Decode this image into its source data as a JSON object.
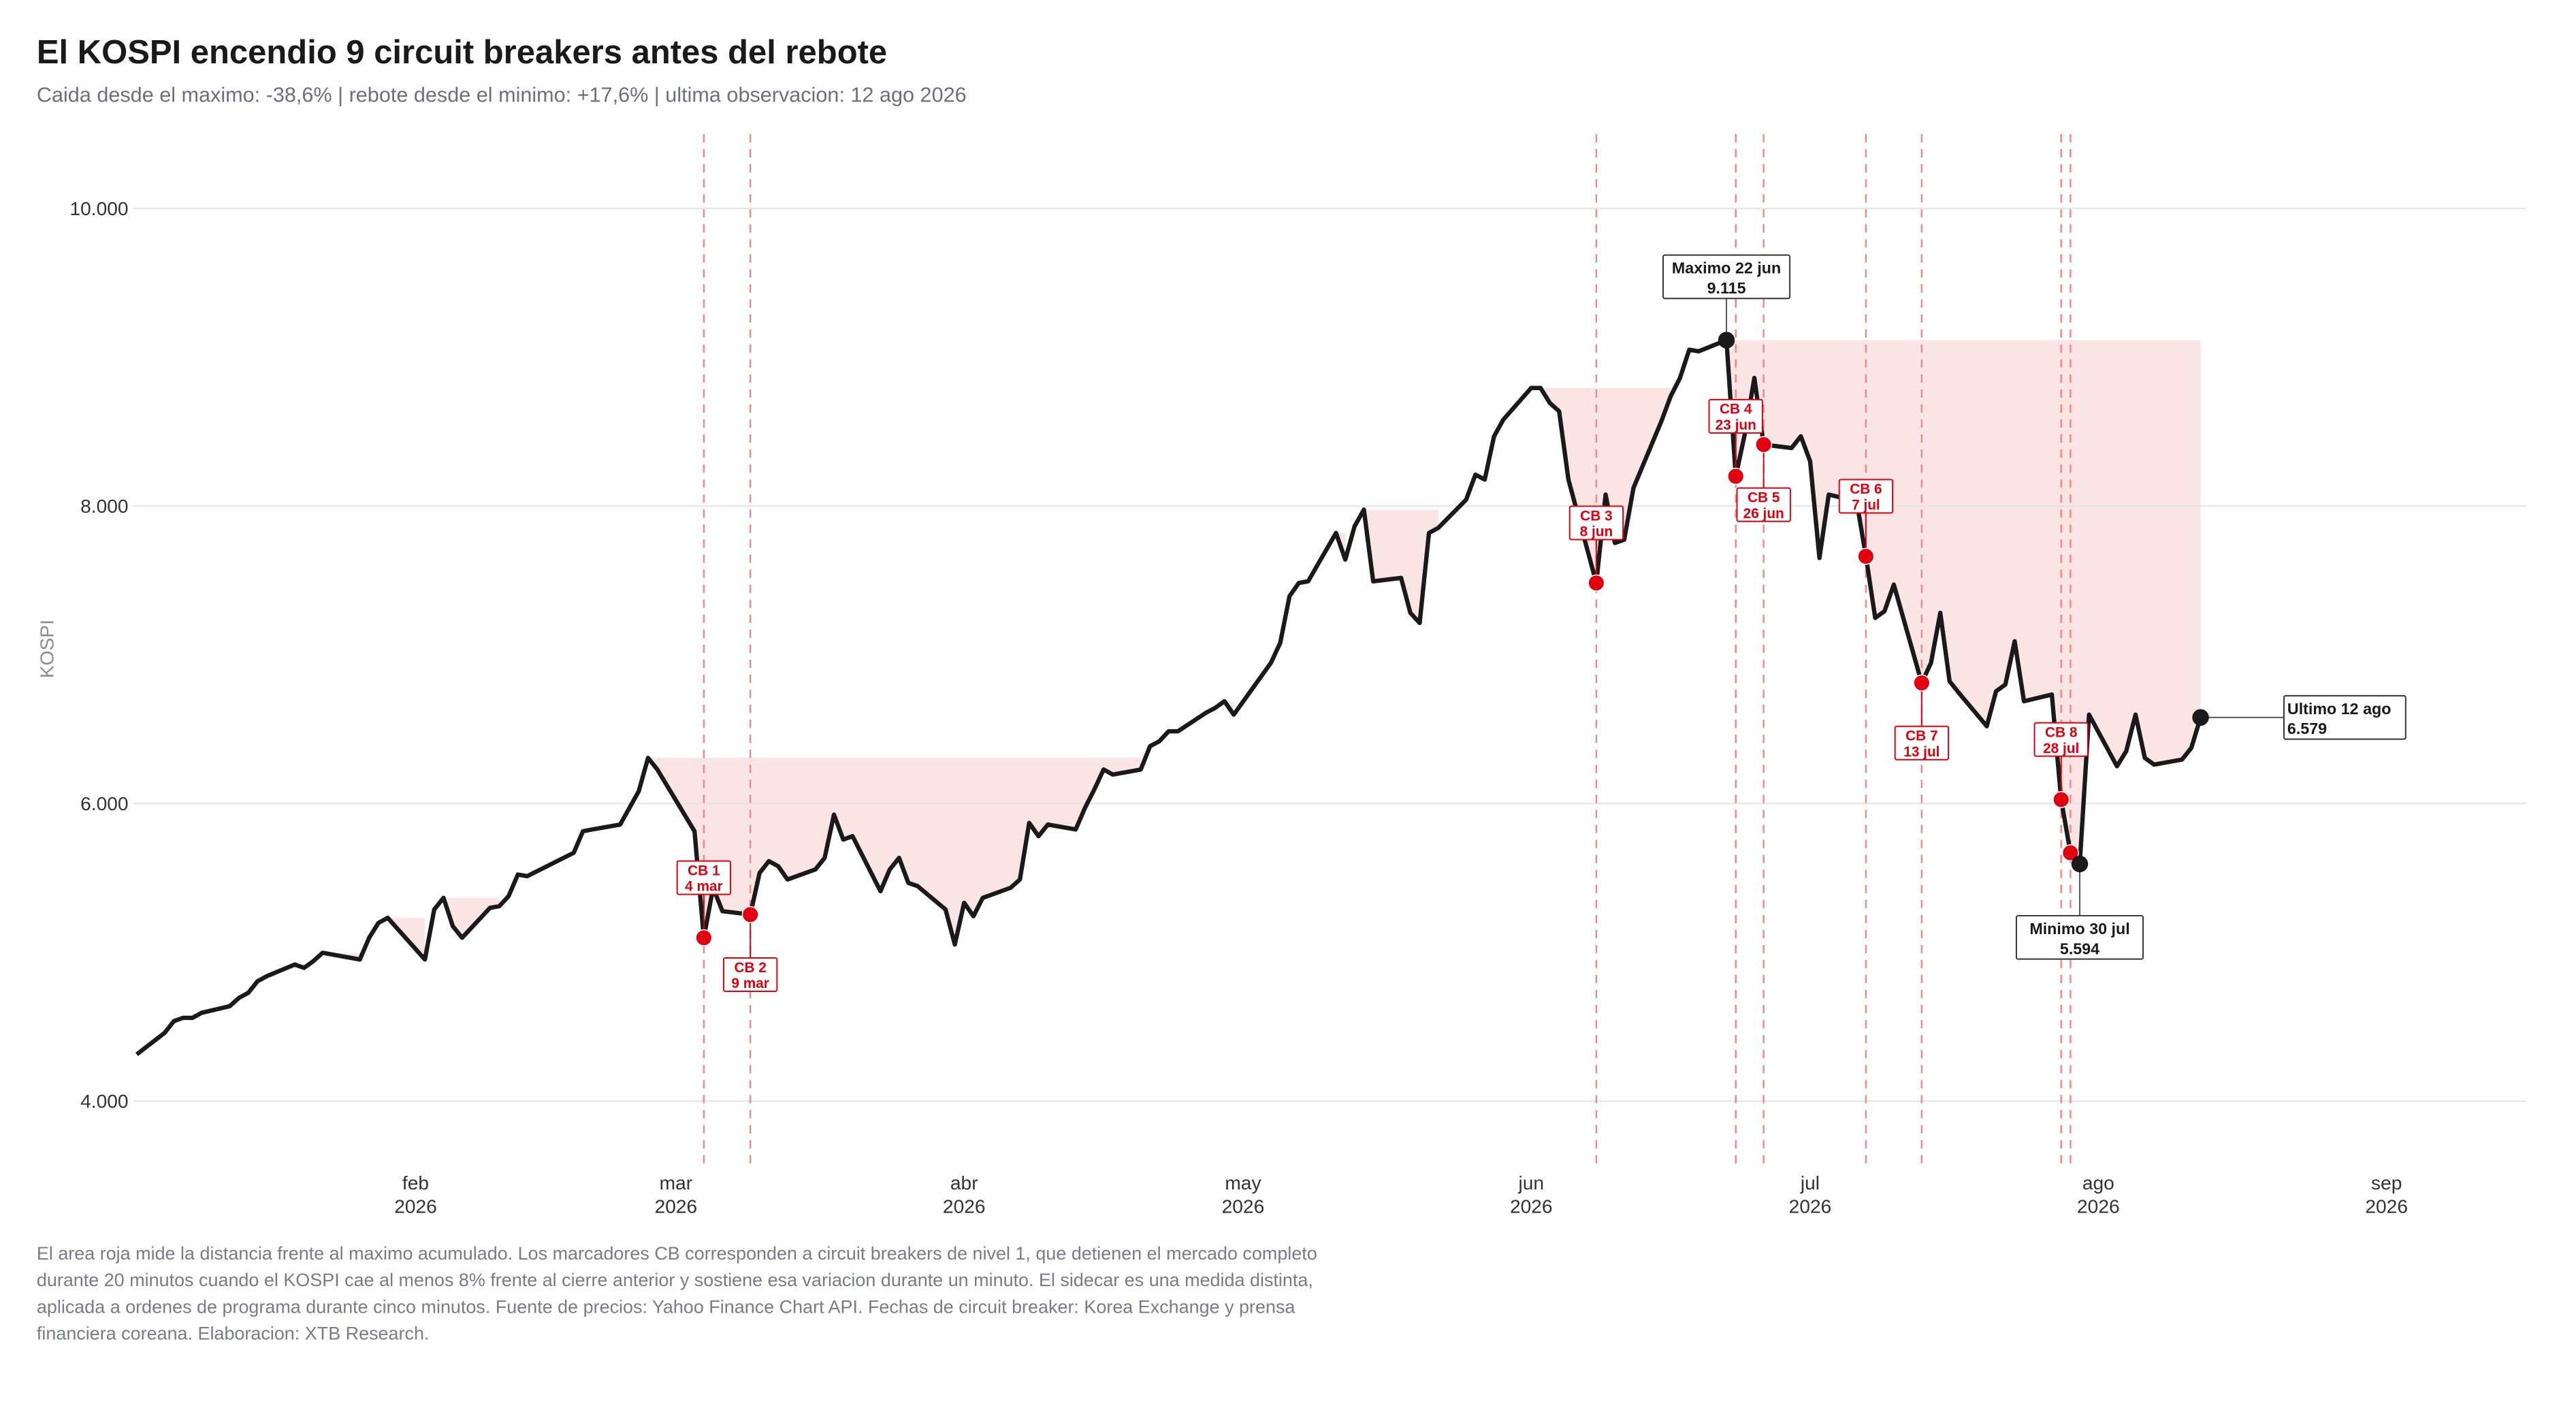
{
  "chart_data": {
    "type": "line",
    "title": "El KOSPI encendio 9 circuit breakers antes del rebote",
    "subtitle": "Caida desde el maximo: -38,6% | rebote desde el minimo: +17,6% | ultima observacion: 12 ago 2026",
    "y_label": "KOSPI",
    "note": "El area roja mide la distancia frente al maximo acumulado. Los marcadores CB corresponden a circuit breakers de nivel 1, que detienen el mercado completo durante 20 minutos cuando el KOSPI cae al menos 8% frente al cierre anterior y sostiene esa variacion durante un minuto. El sidecar es una medida distinta, aplicada a ordenes de programa durante cinco minutos. Fuente de precios: Yahoo Finance Chart API. Fechas de circuit breaker: Korea Exchange y prensa financiera coreana. Elaboracion: XTB Research.",
    "xlim": [
      "2026-01-02",
      "2026-09-16"
    ],
    "ylim": [
      3580,
      10500
    ],
    "xticks": [
      {
        "value": "2026-02-01",
        "label": "feb",
        "year": "2026"
      },
      {
        "value": "2026-03-01",
        "label": "mar",
        "year": "2026"
      },
      {
        "value": "2026-04-01",
        "label": "abr",
        "year": "2026"
      },
      {
        "value": "2026-05-01",
        "label": "may",
        "year": "2026"
      },
      {
        "value": "2026-06-01",
        "label": "jun",
        "year": "2026"
      },
      {
        "value": "2026-07-01",
        "label": "jul",
        "year": "2026"
      },
      {
        "value": "2026-08-01",
        "label": "ago",
        "year": "2026"
      },
      {
        "value": "2026-09-01",
        "label": "sep",
        "year": "2026"
      }
    ],
    "yticks": [
      {
        "value": 4000,
        "label": "4.000"
      },
      {
        "value": 6000,
        "label": "6.000"
      },
      {
        "value": 8000,
        "label": "8.000"
      },
      {
        "value": 10000,
        "label": "10.000"
      }
    ],
    "grid": true,
    "drawdown_color": "#fbe4e4",
    "series": [
      {
        "name": "KOSPI",
        "color": "#1a1a1a",
        "x": [
          "2026-01-02",
          "2026-01-05",
          "2026-01-06",
          "2026-01-07",
          "2026-01-08",
          "2026-01-09",
          "2026-01-12",
          "2026-01-13",
          "2026-01-14",
          "2026-01-15",
          "2026-01-16",
          "2026-01-19",
          "2026-01-20",
          "2026-01-21",
          "2026-01-22",
          "2026-01-26",
          "2026-01-27",
          "2026-01-28",
          "2026-01-29",
          "2026-02-02",
          "2026-02-03",
          "2026-02-04",
          "2026-02-05",
          "2026-02-06",
          "2026-02-09",
          "2026-02-10",
          "2026-02-11",
          "2026-02-12",
          "2026-02-13",
          "2026-02-18",
          "2026-02-19",
          "2026-02-20",
          "2026-02-23",
          "2026-02-24",
          "2026-02-25",
          "2026-02-26",
          "2026-02-27",
          "2026-03-03",
          "2026-03-04",
          "2026-03-05",
          "2026-03-06",
          "2026-03-09",
          "2026-03-10",
          "2026-03-11",
          "2026-03-12",
          "2026-03-13",
          "2026-03-16",
          "2026-03-17",
          "2026-03-18",
          "2026-03-19",
          "2026-03-20",
          "2026-03-23",
          "2026-03-24",
          "2026-03-25",
          "2026-03-26",
          "2026-03-27",
          "2026-03-30",
          "2026-03-31",
          "2026-04-01",
          "2026-04-02",
          "2026-04-03",
          "2026-04-06",
          "2026-04-07",
          "2026-04-08",
          "2026-04-09",
          "2026-04-10",
          "2026-04-13",
          "2026-04-14",
          "2026-04-15",
          "2026-04-16",
          "2026-04-17",
          "2026-04-20",
          "2026-04-21",
          "2026-04-22",
          "2026-04-23",
          "2026-04-24",
          "2026-04-27",
          "2026-04-28",
          "2026-04-29",
          "2026-04-30",
          "2026-05-04",
          "2026-05-05",
          "2026-05-06",
          "2026-05-07",
          "2026-05-08",
          "2026-05-11",
          "2026-05-12",
          "2026-05-13",
          "2026-05-14",
          "2026-05-15",
          "2026-05-18",
          "2026-05-19",
          "2026-05-20",
          "2026-05-21",
          "2026-05-22",
          "2026-05-25",
          "2026-05-26",
          "2026-05-27",
          "2026-05-28",
          "2026-05-29",
          "2026-06-01",
          "2026-06-02",
          "2026-06-03",
          "2026-06-04",
          "2026-06-05",
          "2026-06-08",
          "2026-06-09",
          "2026-06-10",
          "2026-06-11",
          "2026-06-12",
          "2026-06-15",
          "2026-06-16",
          "2026-06-17",
          "2026-06-18",
          "2026-06-19",
          "2026-06-22",
          "2026-06-23",
          "2026-06-24",
          "2026-06-25",
          "2026-06-26",
          "2026-06-29",
          "2026-06-30",
          "2026-07-01",
          "2026-07-02",
          "2026-07-03",
          "2026-07-06",
          "2026-07-07",
          "2026-07-08",
          "2026-07-09",
          "2026-07-10",
          "2026-07-13",
          "2026-07-14",
          "2026-07-15",
          "2026-07-16",
          "2026-07-17",
          "2026-07-20",
          "2026-07-21",
          "2026-07-22",
          "2026-07-23",
          "2026-07-24",
          "2026-07-27",
          "2026-07-28",
          "2026-07-29",
          "2026-07-30",
          "2026-07-31",
          "2026-08-03",
          "2026-08-04",
          "2026-08-05",
          "2026-08-06",
          "2026-08-07",
          "2026-08-10",
          "2026-08-11",
          "2026-08-12"
        ],
        "values": [
          4314,
          4459,
          4538,
          4560,
          4560,
          4594,
          4638,
          4694,
          4728,
          4806,
          4840,
          4918,
          4896,
          4941,
          4997,
          4952,
          5098,
          5198,
          5232,
          4952,
          5288,
          5366,
          5176,
          5098,
          5299,
          5310,
          5378,
          5523,
          5512,
          5669,
          5814,
          5826,
          5859,
          5971,
          6083,
          6307,
          6229,
          5814,
          5098,
          5434,
          5277,
          5254,
          5534,
          5613,
          5579,
          5490,
          5557,
          5635,
          5926,
          5758,
          5781,
          5411,
          5557,
          5635,
          5467,
          5445,
          5288,
          5053,
          5333,
          5243,
          5366,
          5434,
          5490,
          5870,
          5781,
          5859,
          5826,
          5971,
          6094,
          6229,
          6195,
          6229,
          6386,
          6419,
          6486,
          6486,
          6610,
          6643,
          6688,
          6598,
          6946,
          7080,
          7394,
          7483,
          7494,
          7819,
          7640,
          7864,
          7976,
          7494,
          7517,
          7282,
          7214,
          7819,
          7853,
          8043,
          8211,
          8178,
          8469,
          8581,
          8794,
          8794,
          8693,
          8637,
          8178,
          7483,
          8077,
          7752,
          7774,
          8122,
          8570,
          8738,
          8861,
          9051,
          9040,
          9115,
          8200,
          8491,
          8861,
          8413,
          8390,
          8469,
          8301,
          7651,
          8077,
          8032,
          7662,
          7248,
          7293,
          7472,
          6811,
          6946,
          7282,
          6822,
          6744,
          6520,
          6755,
          6800,
          7091,
          6688,
          6733,
          6027,
          5669,
          5594,
          6598,
          6251,
          6352,
          6598,
          6307,
          6262,
          6296,
          6374,
          6579
        ]
      }
    ],
    "circuit_breakers": {
      "color": "#e0000f",
      "line_color": "#f08a8a",
      "events": [
        {
          "label": "CB 1",
          "date_label": "4 mar",
          "x": "2026-03-04",
          "value": 5098
        },
        {
          "label": "CB 2",
          "date_label": "9 mar",
          "x": "2026-03-09",
          "value": 5254
        },
        {
          "label": "CB 3",
          "date_label": "8 jun",
          "x": "2026-06-08",
          "value": 7483
        },
        {
          "label": "CB 4",
          "date_label": "23 jun",
          "x": "2026-06-23",
          "value": 8200
        },
        {
          "label": "CB 5",
          "date_label": "26 jun",
          "x": "2026-06-26",
          "value": 8413
        },
        {
          "label": "CB 6",
          "date_label": "7 jul",
          "x": "2026-07-07",
          "value": 7662
        },
        {
          "label": "CB 7",
          "date_label": "13 jul",
          "x": "2026-07-13",
          "value": 6811
        },
        {
          "label": "CB 8",
          "date_label": "28 jul",
          "x": "2026-07-28",
          "value": 6027
        },
        {
          "x": "2026-07-29",
          "value": 5669
        }
      ]
    },
    "annotations": [
      {
        "text": "Maximo 22 jun",
        "x": "2026-06-22",
        "value": 9115,
        "value_label": "9.115"
      },
      {
        "text": "Minimo 30 jul",
        "x": "2026-07-30",
        "value": 5594,
        "value_label": "5.594"
      },
      {
        "text": "Ultimo 12 ago",
        "x": "2026-08-12",
        "value": 6579,
        "value_label": "6.579"
      }
    ]
  }
}
